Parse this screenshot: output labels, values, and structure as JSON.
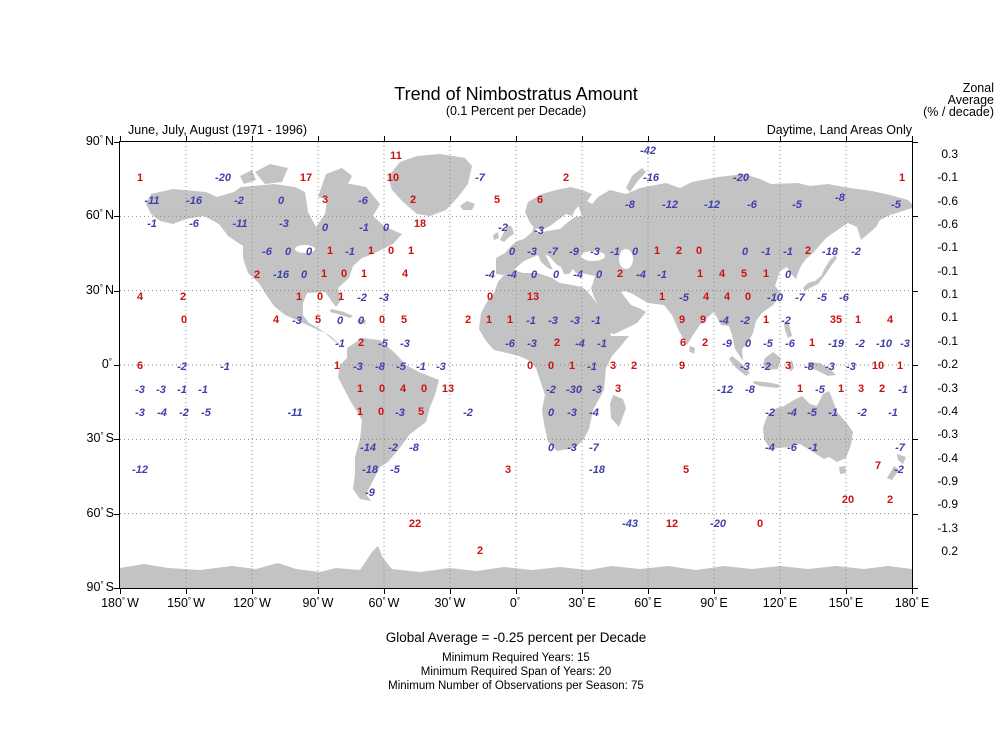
{
  "header": {
    "title": "Trend of Nimbostratus Amount",
    "subtitle": "(0.1 Percent per Decade)",
    "left_caption": "June, July, August (1971 - 1996)",
    "right_caption": "Daytime, Land Areas Only",
    "zonal_lines": [
      "Zonal",
      "Average",
      "(% / decade)"
    ]
  },
  "footer": {
    "global_average": "Global Average = -0.25 percent per Decade",
    "min_years": "Minimum Required Years: 15",
    "min_span": "Minimum Required Span of Years: 20",
    "min_obs": "Minimum Number of Observations per Season: 75"
  },
  "axes": {
    "lat": [
      {
        "num": "90",
        "dir": "N"
      },
      {
        "num": "60",
        "dir": "N"
      },
      {
        "num": "30",
        "dir": "N"
      },
      {
        "num": "0",
        "dir": ""
      },
      {
        "num": "30",
        "dir": "S"
      },
      {
        "num": "60",
        "dir": "S"
      },
      {
        "num": "90",
        "dir": "S"
      }
    ],
    "lon": [
      {
        "num": "180",
        "dir": "W"
      },
      {
        "num": "150",
        "dir": "W"
      },
      {
        "num": "120",
        "dir": "W"
      },
      {
        "num": "90",
        "dir": "W"
      },
      {
        "num": "60",
        "dir": "W"
      },
      {
        "num": "30",
        "dir": "W"
      },
      {
        "num": "0",
        "dir": ""
      },
      {
        "num": "30",
        "dir": "E"
      },
      {
        "num": "60",
        "dir": "E"
      },
      {
        "num": "90",
        "dir": "E"
      },
      {
        "num": "120",
        "dir": "E"
      },
      {
        "num": "150",
        "dir": "E"
      },
      {
        "num": "180",
        "dir": "E"
      }
    ]
  },
  "chart_data": {
    "type": "heatmap",
    "title": "Trend of Nimbostratus Amount",
    "units": "0.1 percent per decade",
    "season": "June, July, August (1971 - 1996)",
    "coverage": "Daytime, Land Areas Only",
    "global_average": "-0.25 percent per Decade",
    "value_colors": {
      "positive": "#cc1111",
      "negative": "#4040ab"
    },
    "zonal_average": {
      "header": "Zonal Average (% / decade)",
      "values": [
        "0.3",
        "-0.1",
        "-0.6",
        "-0.6",
        "-0.1",
        "-0.1",
        "0.1",
        "0.1",
        "-0.1",
        "-0.2",
        "-0.3",
        "-0.4",
        "-0.3",
        "-0.4",
        "-0.9",
        "-0.9",
        "-1.3",
        "0.2"
      ]
    },
    "values": [
      [
        396,
        156,
        "11",
        "r"
      ],
      [
        648,
        151,
        "-42",
        "b"
      ],
      [
        140,
        178,
        "1",
        "r"
      ],
      [
        223,
        178,
        "-20",
        "b"
      ],
      [
        306,
        178,
        "17",
        "r"
      ],
      [
        393,
        178,
        "10",
        "r"
      ],
      [
        480,
        178,
        "-7",
        "b"
      ],
      [
        566,
        178,
        "2",
        "r"
      ],
      [
        651,
        178,
        "-16",
        "b"
      ],
      [
        741,
        178,
        "-20",
        "b"
      ],
      [
        902,
        178,
        "1",
        "r"
      ],
      [
        152,
        201,
        "-11",
        "b"
      ],
      [
        194,
        201,
        "-16",
        "b"
      ],
      [
        239,
        201,
        "-2",
        "b"
      ],
      [
        281,
        201,
        "0",
        "b"
      ],
      [
        325,
        200,
        "3",
        "r"
      ],
      [
        363,
        201,
        "-6",
        "b"
      ],
      [
        413,
        200,
        "2",
        "r"
      ],
      [
        497,
        200,
        "5",
        "r"
      ],
      [
        540,
        200,
        "6",
        "r"
      ],
      [
        630,
        205,
        "-8",
        "b"
      ],
      [
        670,
        205,
        "-12",
        "b"
      ],
      [
        712,
        205,
        "-12",
        "b"
      ],
      [
        752,
        205,
        "-6",
        "b"
      ],
      [
        797,
        205,
        "-5",
        "b"
      ],
      [
        840,
        198,
        "-8",
        "b"
      ],
      [
        896,
        205,
        "-5",
        "b"
      ],
      [
        152,
        224,
        "-1",
        "b"
      ],
      [
        194,
        224,
        "-6",
        "b"
      ],
      [
        240,
        224,
        "-11",
        "b"
      ],
      [
        284,
        224,
        "-3",
        "b"
      ],
      [
        325,
        228,
        "0",
        "b"
      ],
      [
        364,
        228,
        "-1",
        "b"
      ],
      [
        386,
        228,
        "0",
        "b"
      ],
      [
        420,
        224,
        "18",
        "r"
      ],
      [
        503,
        228,
        "-2",
        "b"
      ],
      [
        539,
        231,
        "-3",
        "b"
      ],
      [
        267,
        252,
        "-6",
        "b"
      ],
      [
        288,
        252,
        "0",
        "b"
      ],
      [
        309,
        252,
        "0",
        "b"
      ],
      [
        330,
        251,
        "1",
        "r"
      ],
      [
        350,
        252,
        "-1",
        "b"
      ],
      [
        371,
        251,
        "1",
        "r"
      ],
      [
        391,
        251,
        "0",
        "r"
      ],
      [
        411,
        251,
        "1",
        "r"
      ],
      [
        512,
        252,
        "0",
        "b"
      ],
      [
        532,
        252,
        "-3",
        "b"
      ],
      [
        553,
        252,
        "-7",
        "b"
      ],
      [
        574,
        252,
        "-9",
        "b"
      ],
      [
        595,
        252,
        "-3",
        "b"
      ],
      [
        615,
        252,
        "-1",
        "b"
      ],
      [
        635,
        252,
        "0",
        "b"
      ],
      [
        657,
        251,
        "1",
        "r"
      ],
      [
        679,
        251,
        "2",
        "r"
      ],
      [
        699,
        251,
        "0",
        "r"
      ],
      [
        745,
        252,
        "0",
        "b"
      ],
      [
        766,
        252,
        "-1",
        "b"
      ],
      [
        788,
        252,
        "-1",
        "b"
      ],
      [
        808,
        251,
        "2",
        "r"
      ],
      [
        830,
        252,
        "-18",
        "b"
      ],
      [
        856,
        252,
        "-2",
        "b"
      ],
      [
        257,
        275,
        "2",
        "r"
      ],
      [
        281,
        275,
        "-16",
        "b"
      ],
      [
        304,
        275,
        "0",
        "b"
      ],
      [
        324,
        274,
        "1",
        "r"
      ],
      [
        344,
        274,
        "0",
        "r"
      ],
      [
        364,
        274,
        "1",
        "r"
      ],
      [
        405,
        274,
        "4",
        "r"
      ],
      [
        490,
        275,
        "-4",
        "b"
      ],
      [
        512,
        275,
        "-4",
        "b"
      ],
      [
        534,
        275,
        "0",
        "b"
      ],
      [
        556,
        275,
        "0",
        "b"
      ],
      [
        578,
        275,
        "-4",
        "b"
      ],
      [
        599,
        275,
        "0",
        "b"
      ],
      [
        620,
        274,
        "2",
        "r"
      ],
      [
        641,
        275,
        "-4",
        "b"
      ],
      [
        662,
        275,
        "-1",
        "b"
      ],
      [
        700,
        274,
        "1",
        "r"
      ],
      [
        722,
        274,
        "4",
        "r"
      ],
      [
        744,
        274,
        "5",
        "r"
      ],
      [
        766,
        274,
        "1",
        "r"
      ],
      [
        788,
        275,
        "0",
        "b"
      ],
      [
        140,
        297,
        "4",
        "r"
      ],
      [
        183,
        297,
        "2",
        "r"
      ],
      [
        299,
        297,
        "1",
        "r"
      ],
      [
        320,
        297,
        "0",
        "r"
      ],
      [
        341,
        297,
        "1",
        "r"
      ],
      [
        362,
        298,
        "-2",
        "b"
      ],
      [
        384,
        298,
        "-3",
        "b"
      ],
      [
        490,
        297,
        "0",
        "r"
      ],
      [
        533,
        297,
        "13",
        "r"
      ],
      [
        662,
        297,
        "1",
        "r"
      ],
      [
        684,
        298,
        "-5",
        "b"
      ],
      [
        706,
        297,
        "4",
        "r"
      ],
      [
        727,
        297,
        "4",
        "r"
      ],
      [
        748,
        297,
        "0",
        "r"
      ],
      [
        775,
        298,
        "-10",
        "b"
      ],
      [
        800,
        298,
        "-7",
        "b"
      ],
      [
        822,
        298,
        "-5",
        "b"
      ],
      [
        844,
        298,
        "-6",
        "b"
      ],
      [
        184,
        320,
        "0",
        "r"
      ],
      [
        276,
        320,
        "4",
        "r"
      ],
      [
        297,
        321,
        "-3",
        "b"
      ],
      [
        318,
        320,
        "5",
        "r"
      ],
      [
        340,
        321,
        "0",
        "b"
      ],
      [
        361,
        321,
        "0",
        "b"
      ],
      [
        382,
        320,
        "0",
        "r"
      ],
      [
        404,
        320,
        "5",
        "r"
      ],
      [
        468,
        320,
        "2",
        "r"
      ],
      [
        489,
        320,
        "1",
        "r"
      ],
      [
        510,
        320,
        "1",
        "r"
      ],
      [
        531,
        321,
        "-1",
        "b"
      ],
      [
        553,
        321,
        "-3",
        "b"
      ],
      [
        575,
        321,
        "-3",
        "b"
      ],
      [
        596,
        321,
        "-1",
        "b"
      ],
      [
        682,
        320,
        "9",
        "r"
      ],
      [
        703,
        320,
        "9",
        "r"
      ],
      [
        724,
        321,
        "-4",
        "b"
      ],
      [
        745,
        321,
        "-2",
        "b"
      ],
      [
        766,
        320,
        "1",
        "r"
      ],
      [
        786,
        321,
        "-2",
        "b"
      ],
      [
        836,
        320,
        "35",
        "r"
      ],
      [
        858,
        320,
        "1",
        "r"
      ],
      [
        890,
        320,
        "4",
        "r"
      ],
      [
        340,
        344,
        "-1",
        "b"
      ],
      [
        361,
        343,
        "2",
        "r"
      ],
      [
        383,
        344,
        "-5",
        "b"
      ],
      [
        405,
        344,
        "-3",
        "b"
      ],
      [
        510,
        344,
        "-6",
        "b"
      ],
      [
        532,
        344,
        "-3",
        "b"
      ],
      [
        557,
        343,
        "2",
        "r"
      ],
      [
        580,
        344,
        "-4",
        "b"
      ],
      [
        602,
        344,
        "-1",
        "b"
      ],
      [
        683,
        343,
        "6",
        "r"
      ],
      [
        705,
        343,
        "2",
        "r"
      ],
      [
        727,
        344,
        "-9",
        "b"
      ],
      [
        748,
        344,
        "0",
        "b"
      ],
      [
        768,
        344,
        "-5",
        "b"
      ],
      [
        790,
        344,
        "-6",
        "b"
      ],
      [
        812,
        343,
        "1",
        "r"
      ],
      [
        836,
        344,
        "-19",
        "b"
      ],
      [
        860,
        344,
        "-2",
        "b"
      ],
      [
        884,
        344,
        "-10",
        "b"
      ],
      [
        905,
        344,
        "-3",
        "b"
      ],
      [
        140,
        366,
        "6",
        "r"
      ],
      [
        182,
        367,
        "-2",
        "b"
      ],
      [
        225,
        367,
        "-1",
        "b"
      ],
      [
        337,
        366,
        "1",
        "r"
      ],
      [
        358,
        367,
        "-3",
        "b"
      ],
      [
        380,
        367,
        "-8",
        "b"
      ],
      [
        401,
        367,
        "-5",
        "b"
      ],
      [
        421,
        367,
        "-1",
        "b"
      ],
      [
        441,
        367,
        "-3",
        "b"
      ],
      [
        530,
        366,
        "0",
        "r"
      ],
      [
        551,
        366,
        "0",
        "r"
      ],
      [
        572,
        366,
        "1",
        "r"
      ],
      [
        592,
        367,
        "-1",
        "b"
      ],
      [
        613,
        366,
        "3",
        "r"
      ],
      [
        634,
        366,
        "2",
        "r"
      ],
      [
        682,
        366,
        "9",
        "r"
      ],
      [
        745,
        367,
        "-3",
        "b"
      ],
      [
        766,
        367,
        "-2",
        "b"
      ],
      [
        788,
        366,
        "3",
        "r"
      ],
      [
        809,
        367,
        "-8",
        "b"
      ],
      [
        830,
        367,
        "-3",
        "b"
      ],
      [
        851,
        367,
        "-3",
        "b"
      ],
      [
        878,
        366,
        "10",
        "r"
      ],
      [
        900,
        366,
        "1",
        "r"
      ],
      [
        140,
        390,
        "-3",
        "b"
      ],
      [
        161,
        390,
        "-3",
        "b"
      ],
      [
        182,
        390,
        "-1",
        "b"
      ],
      [
        203,
        390,
        "-1",
        "b"
      ],
      [
        360,
        389,
        "1",
        "r"
      ],
      [
        382,
        389,
        "0",
        "r"
      ],
      [
        403,
        389,
        "4",
        "r"
      ],
      [
        424,
        389,
        "0",
        "r"
      ],
      [
        448,
        389,
        "13",
        "r"
      ],
      [
        551,
        390,
        "-2",
        "b"
      ],
      [
        574,
        390,
        "-30",
        "b"
      ],
      [
        597,
        390,
        "-3",
        "b"
      ],
      [
        618,
        389,
        "3",
        "r"
      ],
      [
        725,
        390,
        "-12",
        "b"
      ],
      [
        750,
        390,
        "-8",
        "b"
      ],
      [
        800,
        389,
        "1",
        "r"
      ],
      [
        820,
        390,
        "-5",
        "b"
      ],
      [
        841,
        389,
        "1",
        "r"
      ],
      [
        861,
        389,
        "3",
        "r"
      ],
      [
        882,
        389,
        "2",
        "r"
      ],
      [
        903,
        390,
        "-1",
        "b"
      ],
      [
        140,
        413,
        "-3",
        "b"
      ],
      [
        162,
        413,
        "-4",
        "b"
      ],
      [
        184,
        413,
        "-2",
        "b"
      ],
      [
        206,
        413,
        "-5",
        "b"
      ],
      [
        295,
        413,
        "-11",
        "b"
      ],
      [
        360,
        412,
        "1",
        "r"
      ],
      [
        381,
        412,
        "0",
        "r"
      ],
      [
        400,
        413,
        "-3",
        "b"
      ],
      [
        421,
        412,
        "5",
        "r"
      ],
      [
        468,
        413,
        "-2",
        "b"
      ],
      [
        551,
        413,
        "0",
        "b"
      ],
      [
        572,
        413,
        "-3",
        "b"
      ],
      [
        594,
        413,
        "-4",
        "b"
      ],
      [
        770,
        413,
        "-2",
        "b"
      ],
      [
        792,
        413,
        "-4",
        "b"
      ],
      [
        812,
        413,
        "-5",
        "b"
      ],
      [
        833,
        413,
        "-1",
        "b"
      ],
      [
        862,
        413,
        "-2",
        "b"
      ],
      [
        893,
        413,
        "-1",
        "b"
      ],
      [
        368,
        448,
        "-14",
        "b"
      ],
      [
        393,
        448,
        "-2",
        "b"
      ],
      [
        414,
        448,
        "-8",
        "b"
      ],
      [
        551,
        448,
        "0",
        "b"
      ],
      [
        572,
        448,
        "-3",
        "b"
      ],
      [
        594,
        448,
        "-7",
        "b"
      ],
      [
        770,
        448,
        "-4",
        "b"
      ],
      [
        792,
        448,
        "-6",
        "b"
      ],
      [
        813,
        448,
        "-1",
        "b"
      ],
      [
        900,
        448,
        "-7",
        "b"
      ],
      [
        140,
        470,
        "-12",
        "b"
      ],
      [
        370,
        470,
        "-18",
        "b"
      ],
      [
        395,
        470,
        "-5",
        "b"
      ],
      [
        508,
        470,
        "3",
        "r"
      ],
      [
        597,
        470,
        "-18",
        "b"
      ],
      [
        686,
        470,
        "5",
        "r"
      ],
      [
        878,
        466,
        "7",
        "r"
      ],
      [
        899,
        470,
        "-2",
        "b"
      ],
      [
        370,
        493,
        "-9",
        "b"
      ],
      [
        848,
        500,
        "20",
        "r"
      ],
      [
        890,
        500,
        "2",
        "r"
      ],
      [
        415,
        524,
        "22",
        "r"
      ],
      [
        630,
        524,
        "-43",
        "b"
      ],
      [
        672,
        524,
        "12",
        "r"
      ],
      [
        718,
        524,
        "-20",
        "b"
      ],
      [
        760,
        524,
        "0",
        "r"
      ],
      [
        480,
        551,
        "2",
        "r"
      ]
    ]
  }
}
